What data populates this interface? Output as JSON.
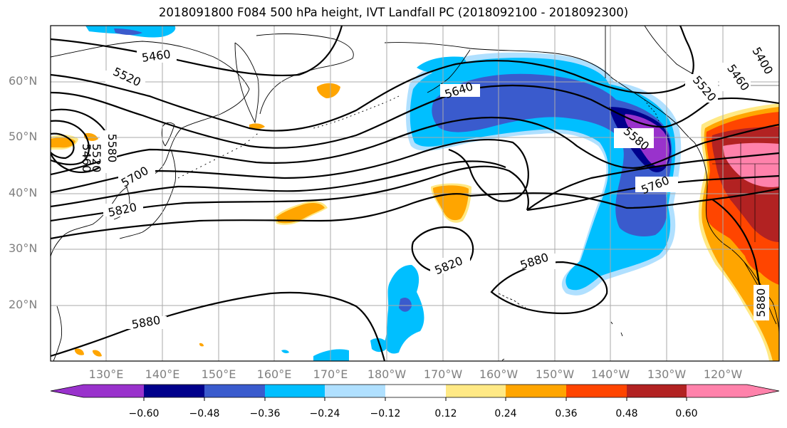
{
  "title": "2018091800 F084 500 hPa height, IVT Landfall PC (2018092100 - 2018092300)",
  "map": {
    "lat_labels": [
      "60°N",
      "50°N",
      "40°N",
      "30°N",
      "20°N"
    ],
    "lon_labels": [
      "130°E",
      "140°E",
      "150°E",
      "160°E",
      "170°E",
      "180°W",
      "170°W",
      "160°W",
      "150°W",
      "140°W",
      "130°W",
      "120°W"
    ],
    "contour_labels": [
      "5460",
      "5520",
      "5580",
      "5520",
      "5460",
      "5640",
      "5700",
      "5820",
      "5820",
      "5880",
      "5880",
      "5580",
      "5760",
      "5520",
      "5460",
      "5400",
      "5880"
    ]
  },
  "colorbar": {
    "colors": [
      "#9932cc",
      "#00008b",
      "#3a5bcd",
      "#00bfff",
      "#b0e0ff",
      "#ffffff",
      "#ffe985",
      "#ffa500",
      "#ff4500",
      "#b22222",
      "#ff82ab"
    ],
    "tick_labels": [
      "−0.60",
      "−0.48",
      "−0.36",
      "−0.24",
      "−0.12",
      "0.12",
      "0.24",
      "0.36",
      "0.48",
      "0.60"
    ]
  }
}
